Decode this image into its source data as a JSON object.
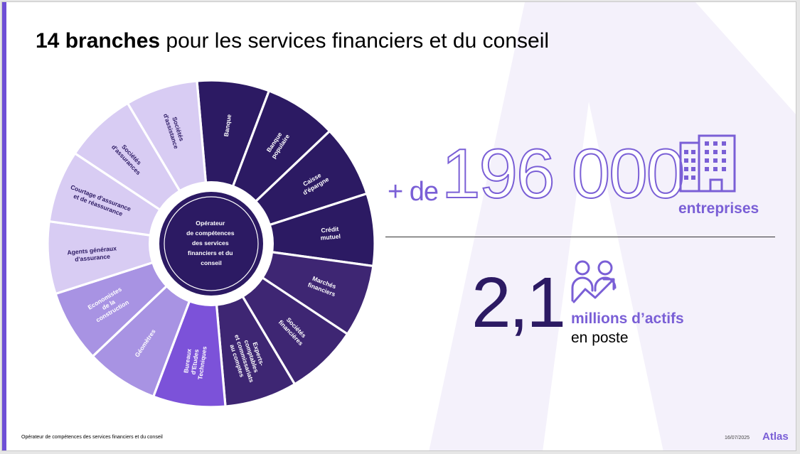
{
  "title": {
    "bold": "14 branches",
    "rest": " pour les services financiers et du conseil"
  },
  "colors": {
    "accent": "#6e4fd6",
    "dark": "#2c1a63",
    "light": "#d8ccf3"
  },
  "wheel": {
    "center": [
      "Opérateur",
      "de compétences",
      "des services",
      "financiers et du",
      "conseil"
    ],
    "segments": [
      {
        "name": "banque",
        "lines": [
          "Banque"
        ],
        "color": "#2c1a63",
        "text_color": "#ffffff"
      },
      {
        "name": "banque-populaire",
        "lines": [
          "Banque",
          "populaire"
        ],
        "color": "#2c1a63",
        "text_color": "#ffffff"
      },
      {
        "name": "caisse-epargne",
        "lines": [
          "Caisse",
          "d'épargne"
        ],
        "color": "#2c1a63",
        "text_color": "#ffffff"
      },
      {
        "name": "credit-mutuel",
        "lines": [
          "Crédit",
          "mutuel"
        ],
        "color": "#2c1a63",
        "text_color": "#ffffff"
      },
      {
        "name": "marches-financiers",
        "lines": [
          "Marchés",
          "financiers"
        ],
        "color": "#3e2673",
        "text_color": "#ffffff"
      },
      {
        "name": "societes-financieres",
        "lines": [
          "Sociétés",
          "financières"
        ],
        "color": "#3e2673",
        "text_color": "#ffffff"
      },
      {
        "name": "experts-comptables",
        "lines": [
          "Experts-",
          "comptables",
          "et commissariats",
          "au comptes"
        ],
        "color": "#3e2673",
        "text_color": "#ffffff"
      },
      {
        "name": "bureaux-etudes",
        "lines": [
          "Bureaux",
          "d'Etudes",
          "Techniques"
        ],
        "color": "#7c52d9",
        "text_color": "#ffffff"
      },
      {
        "name": "geometres",
        "lines": [
          "Géomètres"
        ],
        "color": "#a893e3",
        "text_color": "#ffffff"
      },
      {
        "name": "economistes",
        "lines": [
          "Economistes",
          "de la",
          "construction"
        ],
        "color": "#a893e3",
        "text_color": "#ffffff"
      },
      {
        "name": "agents-generaux",
        "lines": [
          "Agents généraux",
          "d'assurance"
        ],
        "color": "#d8ccf3",
        "text_color": "#2c1a63"
      },
      {
        "name": "courtage",
        "lines": [
          "Courtage d'assurance",
          "et de réassurance"
        ],
        "color": "#d8ccf3",
        "text_color": "#2c1a63"
      },
      {
        "name": "societes-assurances",
        "lines": [
          "Sociétés",
          "d'assurances"
        ],
        "color": "#d8ccf3",
        "text_color": "#2c1a63"
      },
      {
        "name": "societes-assistance",
        "lines": [
          "Sociétés",
          "d'assistance"
        ],
        "color": "#d8ccf3",
        "text_color": "#2c1a63"
      }
    ]
  },
  "stats": {
    "entreprises": {
      "prefix": "+ de",
      "value": "196 000",
      "label": "entreprises",
      "icon": "building-icon"
    },
    "actifs": {
      "value": "2,1",
      "label": "millions d’actifs",
      "sub": "en poste",
      "icon": "people-growth-icon"
    }
  },
  "footer": {
    "text": "Opérateur de compétences des services financiers et du conseil",
    "date": "16/07/2025",
    "logo": "Atlas"
  }
}
